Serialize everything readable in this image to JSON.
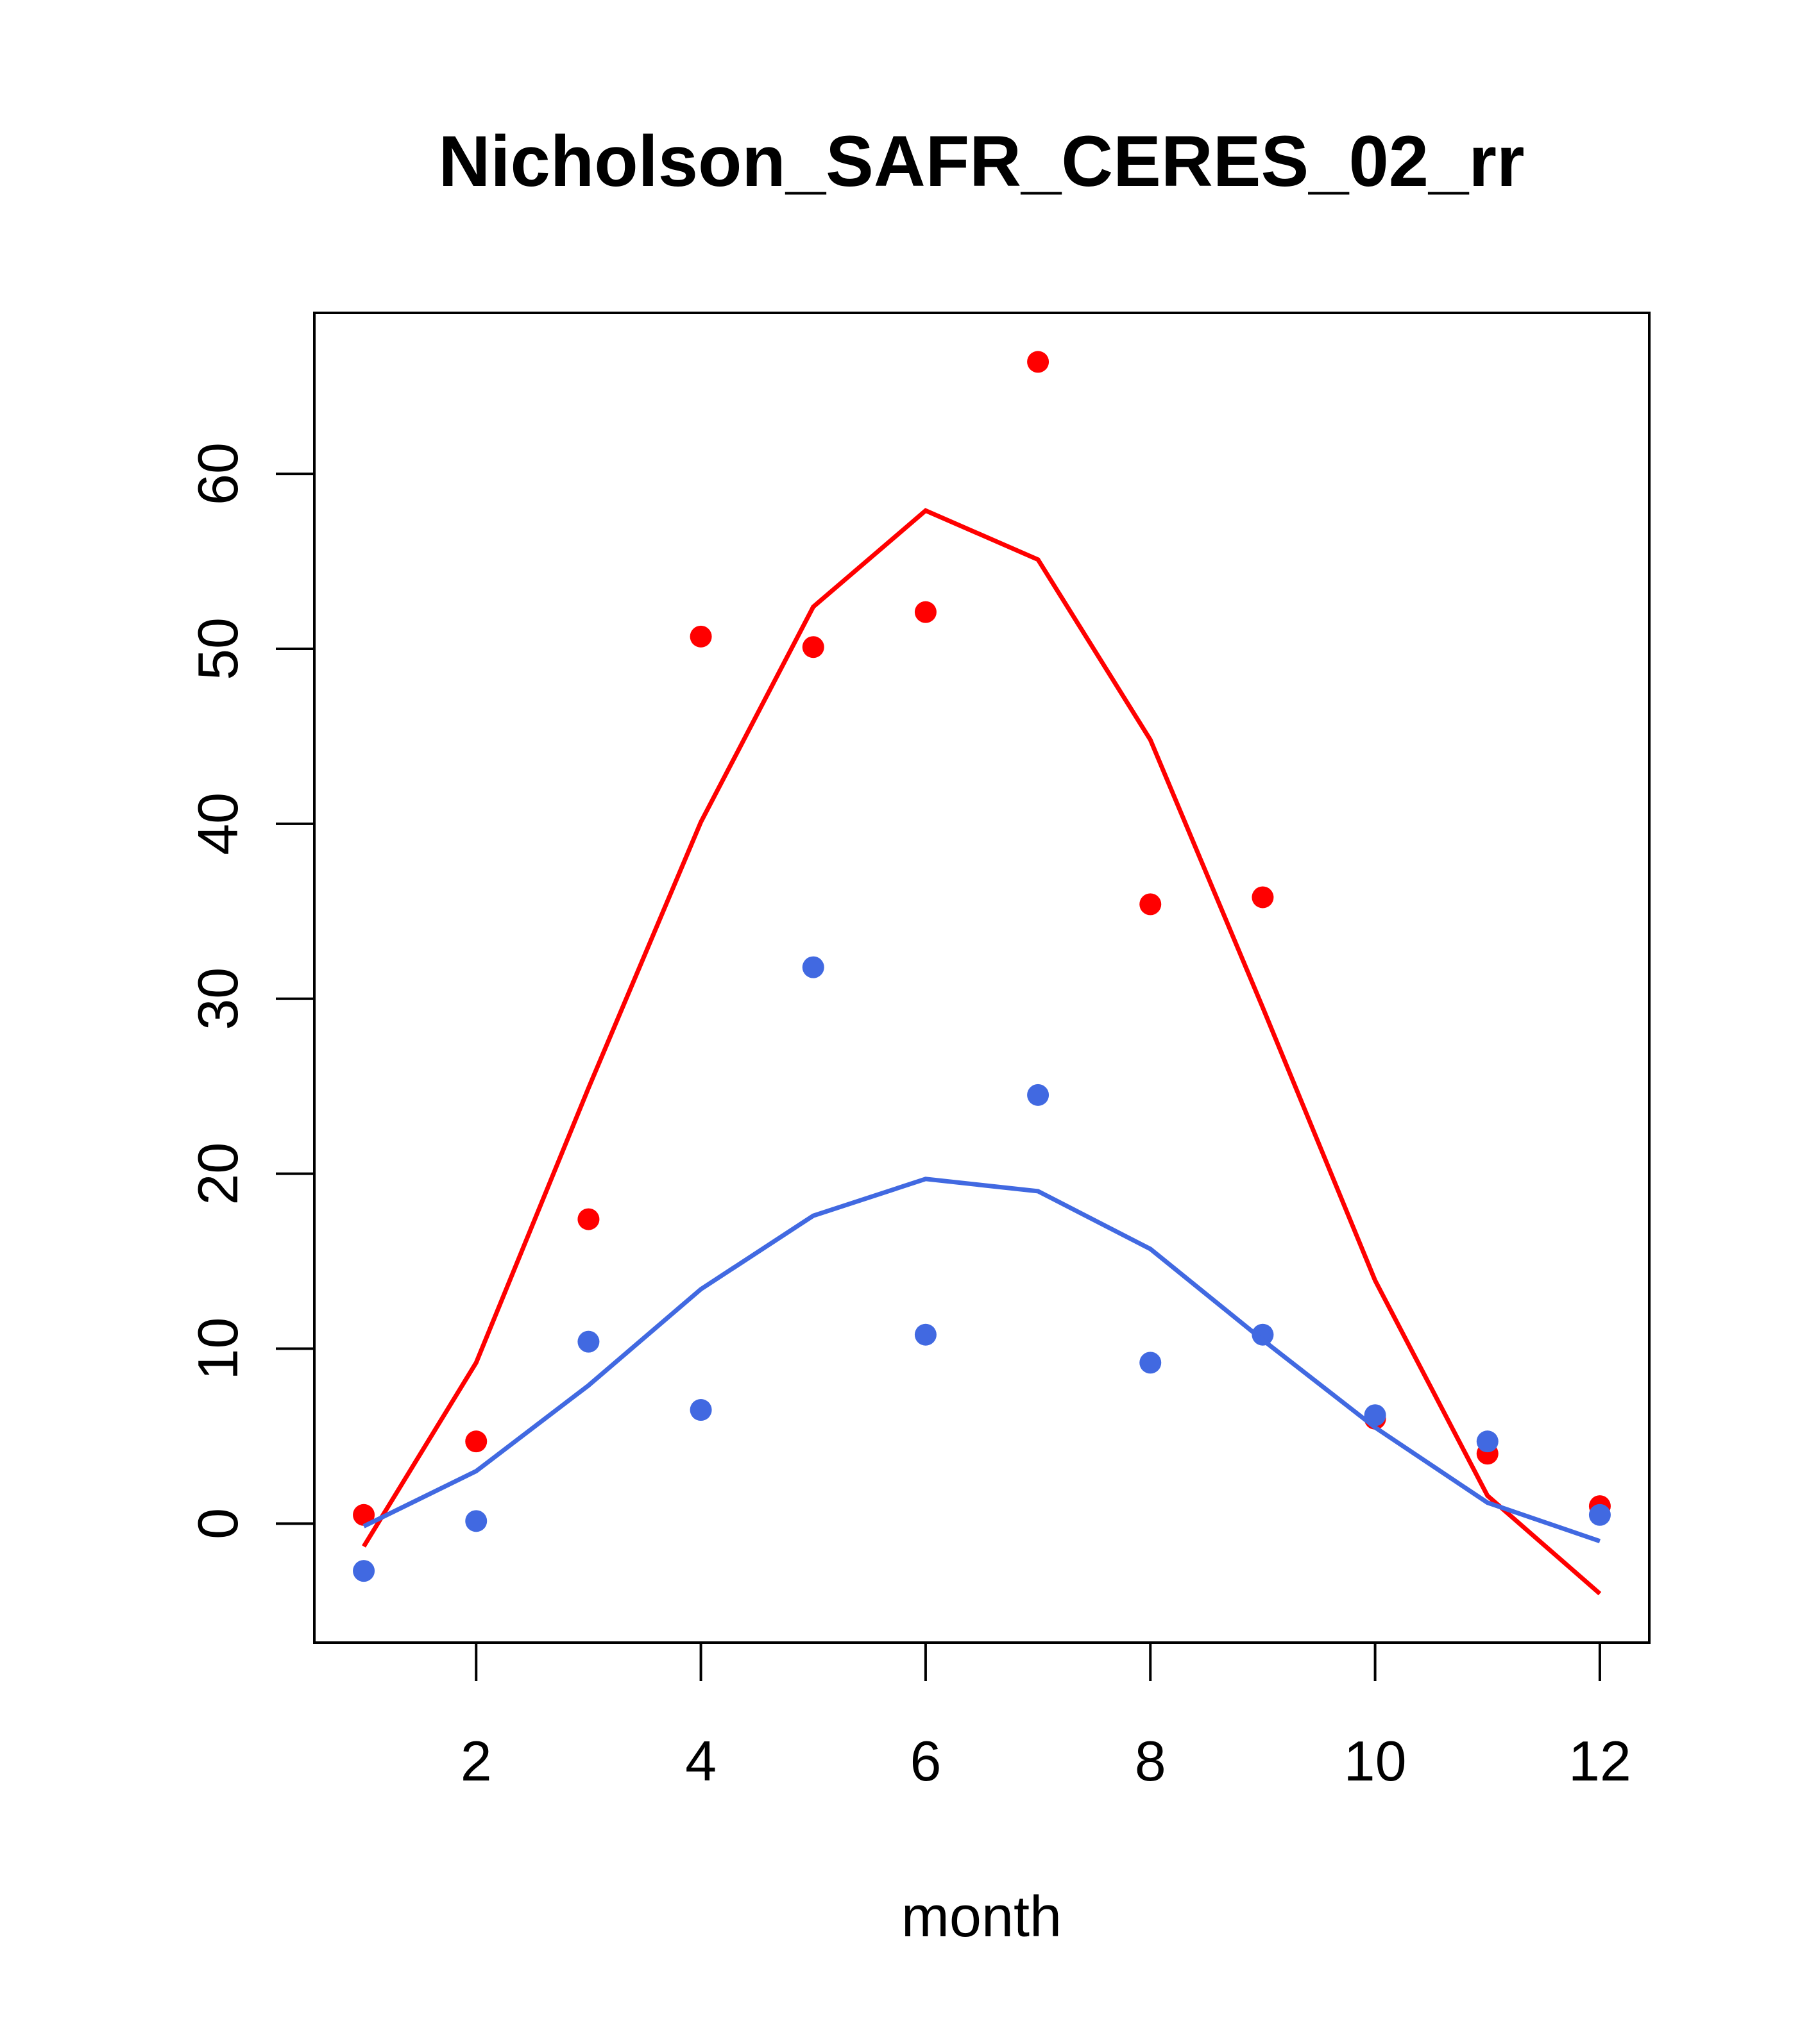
{
  "chart_data": {
    "type": "scatter",
    "title": "Nicholson_SAFR_CERES_02_rr",
    "xlabel": "month",
    "ylabel": "",
    "xlim": [
      0.56,
      12.44
    ],
    "ylim": [
      -6.8,
      69.2
    ],
    "xticks": [
      2,
      4,
      6,
      8,
      10,
      12
    ],
    "yticks": [
      0,
      10,
      20,
      30,
      40,
      50,
      60
    ],
    "xtick_labels": [
      "2",
      "4",
      "6",
      "8",
      "10",
      "12"
    ],
    "ytick_labels": [
      "0",
      "10",
      "20",
      "30",
      "40",
      "50",
      "60"
    ],
    "grid": false,
    "x": [
      1,
      2,
      3,
      4,
      5,
      6,
      7,
      8,
      9,
      10,
      11,
      12
    ],
    "series": [
      {
        "name": "red-points",
        "kind": "points",
        "color": "#ff0000",
        "values": [
          0.5,
          4.7,
          17.4,
          50.7,
          50.1,
          52.1,
          66.4,
          35.4,
          35.8,
          6.0,
          4.0,
          1.0
        ]
      },
      {
        "name": "blue-points",
        "kind": "points",
        "color": "#4169e1",
        "values": [
          -2.7,
          0.15,
          10.4,
          6.5,
          31.8,
          10.8,
          24.5,
          9.2,
          10.8,
          6.2,
          4.7,
          0.5
        ]
      },
      {
        "name": "red-line",
        "kind": "line",
        "color": "#ff0000",
        "values": [
          -1.3,
          9.2,
          24.9,
          40.1,
          52.4,
          57.9,
          55.1,
          44.8,
          29.5,
          13.9,
          1.6,
          -4.0
        ]
      },
      {
        "name": "blue-line",
        "kind": "line",
        "color": "#4169e1",
        "values": [
          -0.15,
          3.0,
          7.9,
          13.4,
          17.6,
          19.7,
          19.0,
          15.7,
          10.5,
          5.5,
          1.2,
          -1.0
        ]
      }
    ]
  }
}
